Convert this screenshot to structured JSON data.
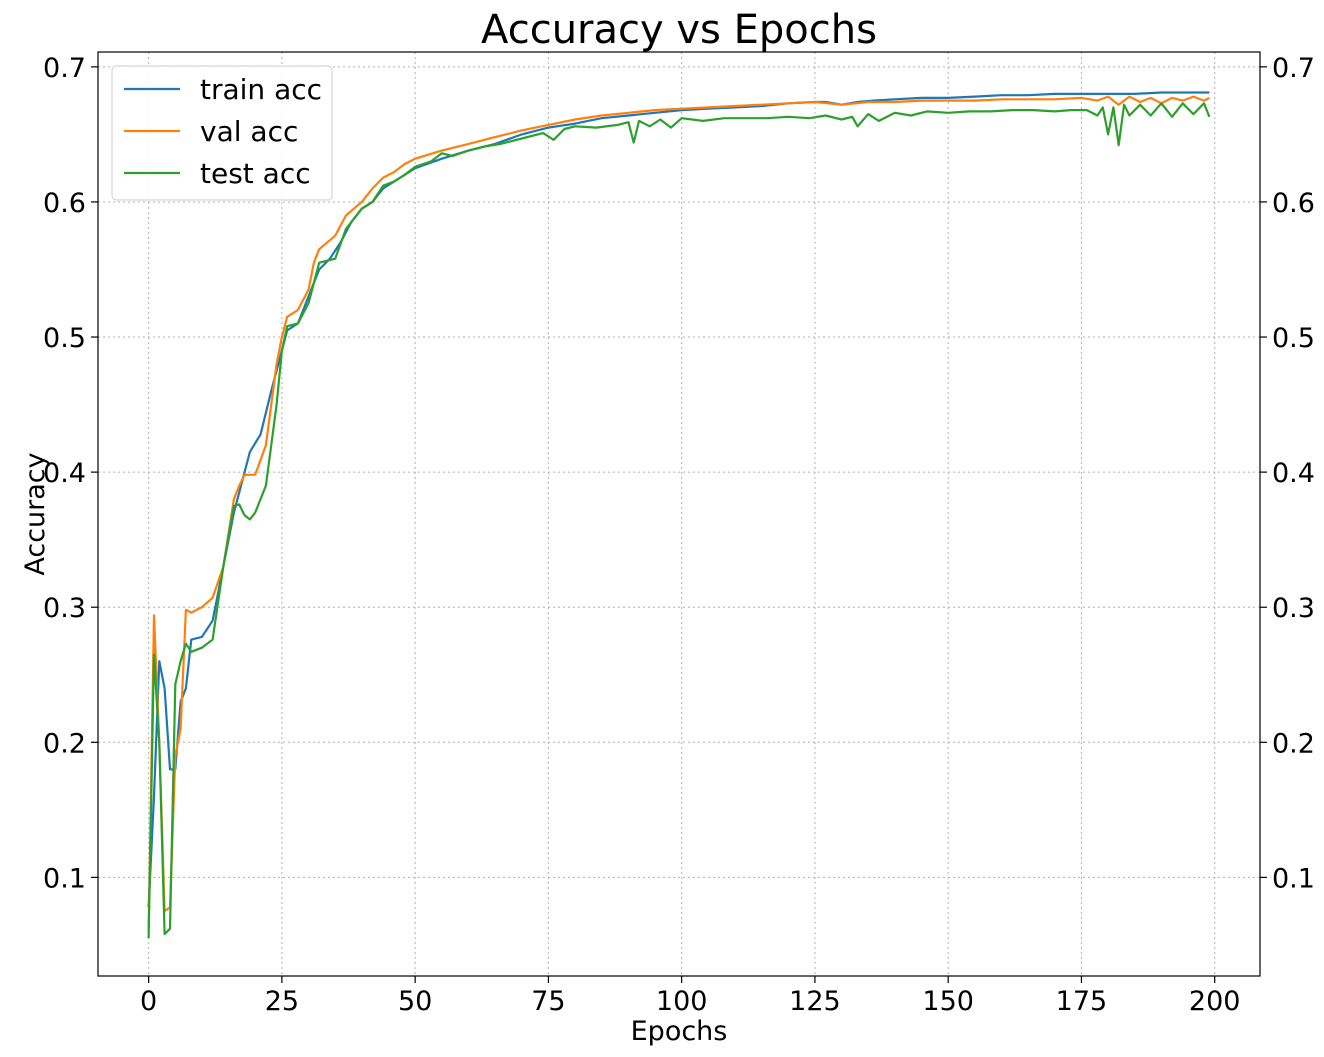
{
  "chart_data": {
    "type": "line",
    "title": "Accuracy vs Epochs",
    "xlabel": "Epochs",
    "ylabel": "Accuracy",
    "xlim": [
      -9.5,
      208.5
    ],
    "ylim": [
      0.027,
      0.711
    ],
    "xticks": [
      0,
      25,
      50,
      75,
      100,
      125,
      150,
      175,
      200
    ],
    "yticks": [
      0.1,
      0.2,
      0.3,
      0.4,
      0.5,
      0.6,
      0.7
    ],
    "ytick_labels": [
      "0.1",
      "0.2",
      "0.3",
      "0.4",
      "0.5",
      "0.6",
      "0.7"
    ],
    "right_axis_duplicate": true,
    "grid": true,
    "legend_position": "top-left",
    "series": [
      {
        "name": "train acc",
        "color": "#1f77b4",
        "points": [
          [
            0,
            0.078
          ],
          [
            1,
            0.16
          ],
          [
            2,
            0.26
          ],
          [
            3,
            0.24
          ],
          [
            4,
            0.18
          ],
          [
            5,
            0.18
          ],
          [
            6,
            0.23
          ],
          [
            7,
            0.24
          ],
          [
            8,
            0.276
          ],
          [
            10,
            0.278
          ],
          [
            12,
            0.29
          ],
          [
            14,
            0.33
          ],
          [
            16,
            0.37
          ],
          [
            18,
            0.4
          ],
          [
            19,
            0.415
          ],
          [
            21,
            0.428
          ],
          [
            23,
            0.46
          ],
          [
            25,
            0.49
          ],
          [
            26,
            0.505
          ],
          [
            28,
            0.51
          ],
          [
            30,
            0.53
          ],
          [
            32,
            0.55
          ],
          [
            34,
            0.558
          ],
          [
            36,
            0.57
          ],
          [
            38,
            0.585
          ],
          [
            40,
            0.595
          ],
          [
            42,
            0.6
          ],
          [
            44,
            0.61
          ],
          [
            46,
            0.615
          ],
          [
            48,
            0.62
          ],
          [
            50,
            0.625
          ],
          [
            55,
            0.632
          ],
          [
            60,
            0.638
          ],
          [
            65,
            0.643
          ],
          [
            70,
            0.65
          ],
          [
            75,
            0.655
          ],
          [
            80,
            0.658
          ],
          [
            85,
            0.662
          ],
          [
            90,
            0.664
          ],
          [
            95,
            0.666
          ],
          [
            100,
            0.668
          ],
          [
            105,
            0.669
          ],
          [
            110,
            0.67
          ],
          [
            115,
            0.671
          ],
          [
            120,
            0.673
          ],
          [
            125,
            0.674
          ],
          [
            127,
            0.674
          ],
          [
            130,
            0.672
          ],
          [
            133,
            0.674
          ],
          [
            136,
            0.675
          ],
          [
            140,
            0.676
          ],
          [
            145,
            0.677
          ],
          [
            150,
            0.677
          ],
          [
            155,
            0.678
          ],
          [
            160,
            0.679
          ],
          [
            165,
            0.679
          ],
          [
            170,
            0.68
          ],
          [
            175,
            0.68
          ],
          [
            180,
            0.68
          ],
          [
            185,
            0.68
          ],
          [
            190,
            0.681
          ],
          [
            195,
            0.681
          ],
          [
            199,
            0.681
          ]
        ]
      },
      {
        "name": "val acc",
        "color": "#ff7f0e",
        "points": [
          [
            0,
            0.06
          ],
          [
            1,
            0.294
          ],
          [
            2,
            0.2
          ],
          [
            3,
            0.075
          ],
          [
            4,
            0.078
          ],
          [
            5,
            0.19
          ],
          [
            6,
            0.21
          ],
          [
            7,
            0.298
          ],
          [
            8,
            0.296
          ],
          [
            10,
            0.3
          ],
          [
            12,
            0.307
          ],
          [
            14,
            0.33
          ],
          [
            16,
            0.38
          ],
          [
            17,
            0.39
          ],
          [
            18,
            0.398
          ],
          [
            20,
            0.398
          ],
          [
            22,
            0.42
          ],
          [
            24,
            0.48
          ],
          [
            25,
            0.5
          ],
          [
            26,
            0.515
          ],
          [
            28,
            0.52
          ],
          [
            30,
            0.535
          ],
          [
            31,
            0.555
          ],
          [
            32,
            0.565
          ],
          [
            35,
            0.575
          ],
          [
            37,
            0.59
          ],
          [
            40,
            0.6
          ],
          [
            42,
            0.61
          ],
          [
            44,
            0.618
          ],
          [
            46,
            0.622
          ],
          [
            48,
            0.628
          ],
          [
            50,
            0.632
          ],
          [
            55,
            0.638
          ],
          [
            60,
            0.643
          ],
          [
            65,
            0.648
          ],
          [
            70,
            0.653
          ],
          [
            75,
            0.657
          ],
          [
            80,
            0.661
          ],
          [
            85,
            0.664
          ],
          [
            90,
            0.666
          ],
          [
            95,
            0.668
          ],
          [
            100,
            0.669
          ],
          [
            105,
            0.67
          ],
          [
            110,
            0.671
          ],
          [
            115,
            0.672
          ],
          [
            120,
            0.673
          ],
          [
            125,
            0.674
          ],
          [
            130,
            0.672
          ],
          [
            135,
            0.674
          ],
          [
            140,
            0.674
          ],
          [
            145,
            0.675
          ],
          [
            150,
            0.675
          ],
          [
            155,
            0.675
          ],
          [
            160,
            0.676
          ],
          [
            165,
            0.676
          ],
          [
            170,
            0.676
          ],
          [
            175,
            0.677
          ],
          [
            178,
            0.675
          ],
          [
            180,
            0.678
          ],
          [
            182,
            0.672
          ],
          [
            184,
            0.678
          ],
          [
            186,
            0.674
          ],
          [
            188,
            0.677
          ],
          [
            190,
            0.673
          ],
          [
            192,
            0.677
          ],
          [
            194,
            0.675
          ],
          [
            196,
            0.678
          ],
          [
            198,
            0.675
          ],
          [
            199,
            0.677
          ]
        ]
      },
      {
        "name": "test acc",
        "color": "#2ca02c",
        "points": [
          [
            0,
            0.055
          ],
          [
            1,
            0.265
          ],
          [
            2,
            0.2
          ],
          [
            3,
            0.058
          ],
          [
            4,
            0.062
          ],
          [
            5,
            0.243
          ],
          [
            6,
            0.26
          ],
          [
            7,
            0.273
          ],
          [
            8,
            0.267
          ],
          [
            10,
            0.27
          ],
          [
            12,
            0.276
          ],
          [
            14,
            0.33
          ],
          [
            16,
            0.375
          ],
          [
            17,
            0.376
          ],
          [
            18,
            0.368
          ],
          [
            19,
            0.365
          ],
          [
            20,
            0.37
          ],
          [
            22,
            0.39
          ],
          [
            24,
            0.45
          ],
          [
            25,
            0.49
          ],
          [
            26,
            0.508
          ],
          [
            28,
            0.51
          ],
          [
            30,
            0.525
          ],
          [
            32,
            0.555
          ],
          [
            35,
            0.558
          ],
          [
            37,
            0.58
          ],
          [
            40,
            0.595
          ],
          [
            42,
            0.6
          ],
          [
            44,
            0.612
          ],
          [
            46,
            0.615
          ],
          [
            48,
            0.62
          ],
          [
            50,
            0.626
          ],
          [
            53,
            0.63
          ],
          [
            55,
            0.636
          ],
          [
            57,
            0.634
          ],
          [
            60,
            0.638
          ],
          [
            63,
            0.641
          ],
          [
            66,
            0.643
          ],
          [
            70,
            0.647
          ],
          [
            74,
            0.651
          ],
          [
            76,
            0.646
          ],
          [
            78,
            0.654
          ],
          [
            80,
            0.656
          ],
          [
            84,
            0.655
          ],
          [
            88,
            0.657
          ],
          [
            90,
            0.659
          ],
          [
            91,
            0.644
          ],
          [
            92,
            0.66
          ],
          [
            94,
            0.656
          ],
          [
            96,
            0.661
          ],
          [
            98,
            0.655
          ],
          [
            100,
            0.662
          ],
          [
            104,
            0.66
          ],
          [
            108,
            0.662
          ],
          [
            112,
            0.662
          ],
          [
            116,
            0.662
          ],
          [
            120,
            0.663
          ],
          [
            124,
            0.662
          ],
          [
            127,
            0.664
          ],
          [
            130,
            0.661
          ],
          [
            132,
            0.663
          ],
          [
            133,
            0.656
          ],
          [
            135,
            0.665
          ],
          [
            137,
            0.66
          ],
          [
            140,
            0.666
          ],
          [
            143,
            0.664
          ],
          [
            146,
            0.667
          ],
          [
            150,
            0.666
          ],
          [
            154,
            0.667
          ],
          [
            158,
            0.667
          ],
          [
            162,
            0.668
          ],
          [
            166,
            0.668
          ],
          [
            170,
            0.667
          ],
          [
            173,
            0.668
          ],
          [
            176,
            0.668
          ],
          [
            178,
            0.664
          ],
          [
            179,
            0.67
          ],
          [
            180,
            0.65
          ],
          [
            181,
            0.67
          ],
          [
            182,
            0.642
          ],
          [
            183,
            0.672
          ],
          [
            184,
            0.664
          ],
          [
            186,
            0.672
          ],
          [
            188,
            0.664
          ],
          [
            190,
            0.673
          ],
          [
            192,
            0.663
          ],
          [
            194,
            0.673
          ],
          [
            196,
            0.665
          ],
          [
            198,
            0.673
          ],
          [
            199,
            0.663
          ]
        ]
      }
    ]
  }
}
